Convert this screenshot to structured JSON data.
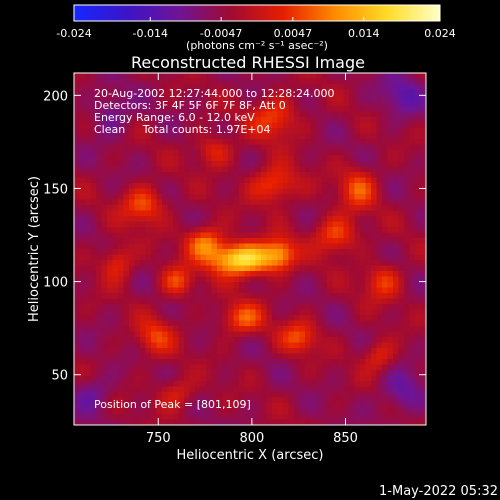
{
  "chart_data": {
    "type": "heatmap",
    "title": "Reconstructed RHESSI Image",
    "xlabel": "Heliocentric X (arcsec)",
    "ylabel": "Heliocentric Y (arcsec)",
    "xlim": [
      705,
      893
    ],
    "ylim": [
      23,
      212
    ],
    "xticks": [
      750,
      800,
      850
    ],
    "yticks": [
      50,
      100,
      150,
      200
    ],
    "colorbar": {
      "min": -0.024,
      "max": 0.024,
      "ticks": [
        "-0.024",
        "-0.014",
        "-0.0047",
        "0.0047",
        "0.014",
        "0.024"
      ],
      "unit_label": "(photons cm⁻² s⁻¹ asec⁻²)",
      "colors": [
        "#1428ff",
        "#3c14c8",
        "#6e1496",
        "#a00a32",
        "#e61e00",
        "#ff8c00",
        "#ffdc28",
        "#ffffc8"
      ]
    },
    "annotations": [
      "20-Aug-2002 12:27:44.000 to 12:28:24.000",
      "Detectors: 3F 4F 5F 6F 7F 8F, Att 0",
      "Energy Range: 6.0 - 12.0 keV",
      "Clean     Total counts: 1.97E+04"
    ],
    "peak_label": "Position of Peak = [801,109]",
    "peak_position": [
      801,
      109
    ],
    "sources": [
      {
        "x": 795,
        "y": 112,
        "value": 0.024,
        "sx": 12,
        "sy": 6
      },
      {
        "x": 775,
        "y": 121,
        "value": 0.013,
        "sx": 7,
        "sy": 6
      },
      {
        "x": 815,
        "y": 115,
        "value": 0.012,
        "sx": 6,
        "sy": 6
      },
      {
        "x": 845,
        "y": 125,
        "value": 0.011,
        "sx": 8,
        "sy": 7
      },
      {
        "x": 760,
        "y": 100,
        "value": 0.01,
        "sx": 6,
        "sy": 6
      },
      {
        "x": 742,
        "y": 141,
        "value": 0.011,
        "sx": 8,
        "sy": 7
      },
      {
        "x": 812,
        "y": 152,
        "value": 0.011,
        "sx": 9,
        "sy": 7
      },
      {
        "x": 857,
        "y": 150,
        "value": 0.01,
        "sx": 7,
        "sy": 8
      },
      {
        "x": 795,
        "y": 80,
        "value": 0.011,
        "sx": 8,
        "sy": 6
      },
      {
        "x": 825,
        "y": 70,
        "value": 0.01,
        "sx": 7,
        "sy": 6
      },
      {
        "x": 748,
        "y": 70,
        "value": 0.009,
        "sx": 7,
        "sy": 7
      },
      {
        "x": 812,
        "y": 188,
        "value": 0.01,
        "sx": 9,
        "sy": 8
      },
      {
        "x": 870,
        "y": 100,
        "value": 0.009,
        "sx": 7,
        "sy": 7
      },
      {
        "x": 728,
        "y": 110,
        "value": 0.009,
        "sx": 6,
        "sy": 7
      },
      {
        "x": 780,
        "y": 170,
        "value": 0.008,
        "sx": 7,
        "sy": 6
      },
      {
        "x": 868,
        "y": 60,
        "value": 0.008,
        "sx": 6,
        "sy": 6
      },
      {
        "x": 760,
        "y": 40,
        "value": 0.007,
        "sx": 7,
        "sy": 6
      },
      {
        "x": 725,
        "y": 190,
        "value": -0.006,
        "sx": 7,
        "sy": 8
      },
      {
        "x": 880,
        "y": 200,
        "value": -0.007,
        "sx": 8,
        "sy": 8
      },
      {
        "x": 880,
        "y": 40,
        "value": -0.007,
        "sx": 8,
        "sy": 8
      },
      {
        "x": 715,
        "y": 40,
        "value": -0.006,
        "sx": 7,
        "sy": 7
      }
    ]
  },
  "footer": {
    "timestamp": "1-May-2022 05:32"
  }
}
